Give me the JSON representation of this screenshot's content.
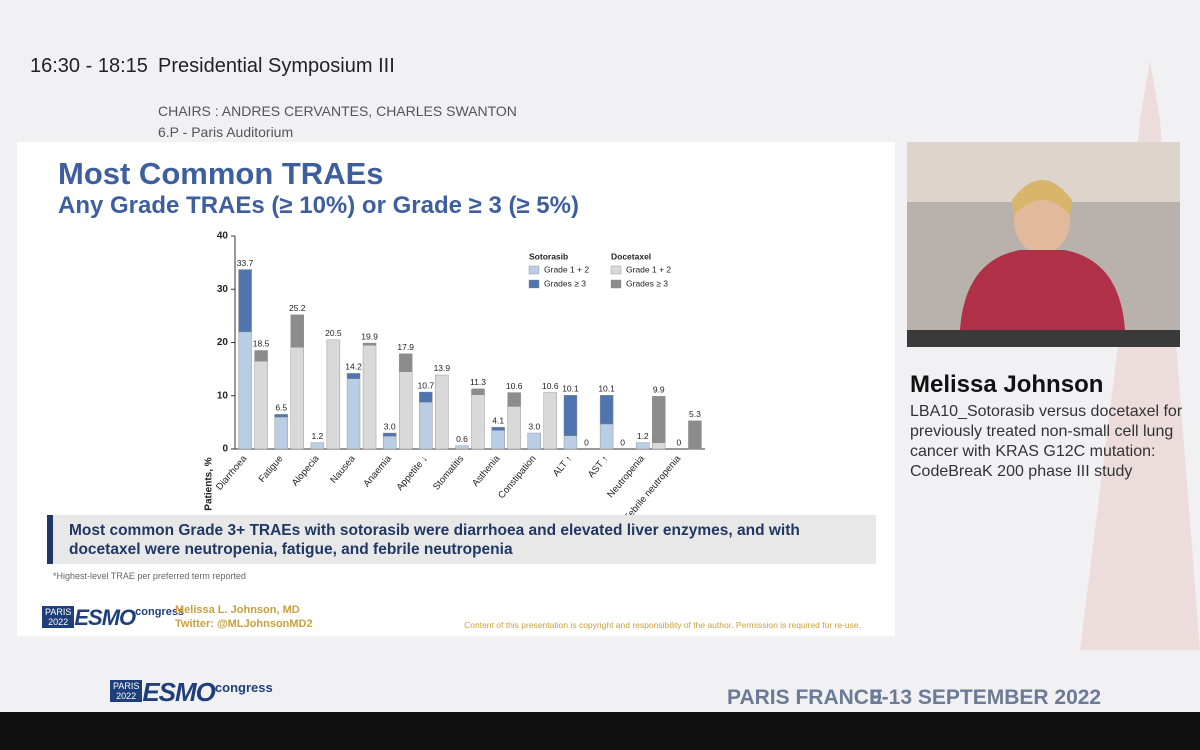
{
  "header": {
    "time": "16:30 - 18:15",
    "session": "Presidential Symposium III",
    "chairs": "CHAIRS : ANDRES CERVANTES, CHARLES SWANTON",
    "room": "6.P - Paris Auditorium"
  },
  "slide": {
    "title": "Most Common TRAEs",
    "subtitle": "Any Grade TRAEs (≥ 10%) or Grade ≥ 3 (≥ 5%)",
    "callout": "Most common Grade 3+ TRAEs with sotorasib were diarrhoea and elevated liver enzymes, and with docetaxel were neutropenia, fatigue, and febrile neutropenia",
    "footnote": "*Highest-level TRAE per preferred term reported",
    "presenter": "Melissa L. Johnson, MD",
    "twitter": "Twitter: @MLJohnsonMD2",
    "copyright": "Content of this presentation is copyright and responsibility of the author. Permission is required for re-use.",
    "logo": {
      "city": "PARIS",
      "year": "2022",
      "brand": "ESMO",
      "event": "congress"
    }
  },
  "chart_data": {
    "type": "stacked-grouped-bar",
    "y_label": "Patients, %",
    "categories": [
      "Diarrhoea",
      "Fatigue",
      "Alopecia",
      "Nausea",
      "Anaemia",
      "Appetite ↓",
      "Stomatitis",
      "Asthenia",
      "Constipation",
      "ALT ↑",
      "AST ↑",
      "Neutropenia",
      "Febrile neutropenia"
    ],
    "groups": [
      {
        "name": "Sotorasib",
        "total_labels": [
          "33.7",
          "6.5",
          "1.2",
          "14.2",
          "3.0",
          "10.7",
          "0.6",
          "4.1",
          "3.0",
          "10.1",
          "10.1",
          "1.2",
          "0"
        ]
      },
      {
        "name": "Docetaxel",
        "total_labels": [
          "18.5",
          "25.2",
          "20.5",
          "19.9",
          "17.9",
          "13.9",
          "11.3",
          "10.6",
          "10.6",
          "0",
          "0",
          "9.9",
          "5.3"
        ]
      }
    ],
    "series": [
      {
        "name": "Grade 1 + 2",
        "group": "Sotorasib",
        "color": "#b9cde5",
        "values": [
          22.0,
          6.0,
          1.2,
          13.2,
          2.4,
          8.8,
          0.6,
          3.5,
          3.0,
          2.5,
          4.7,
          1.2,
          0
        ]
      },
      {
        "name": "Grades ≥ 3",
        "group": "Sotorasib",
        "color": "#4f74b0",
        "values": [
          11.7,
          0.5,
          0,
          1.0,
          0.6,
          1.9,
          0,
          0.6,
          0,
          7.6,
          5.4,
          0,
          0
        ]
      },
      {
        "name": "Grade 1 + 2",
        "group": "Docetaxel",
        "color": "#d9d9d9",
        "values": [
          16.5,
          19.1,
          20.5,
          19.5,
          14.5,
          13.9,
          10.2,
          8.0,
          10.6,
          0,
          0,
          1.2,
          0
        ]
      },
      {
        "name": "Grades ≥ 3",
        "group": "Docetaxel",
        "color": "#8c8c8c",
        "values": [
          2.0,
          6.1,
          0,
          0.4,
          3.4,
          0,
          1.1,
          2.6,
          0,
          0,
          0,
          8.7,
          5.3
        ]
      }
    ],
    "ylim": [
      0,
      40
    ],
    "yticks": [
      0,
      10,
      20,
      30,
      40
    ]
  },
  "speaker": {
    "name": "Melissa Johnson",
    "talk": "LBA10_Sotorasib versus docetaxel for previously treated non-small cell lung cancer with KRAS G12C mutation: CodeBreaK 200 phase III study"
  },
  "footer": {
    "location": "PARIS FRANCE",
    "dates": "9-13 SEPTEMBER 2022",
    "logo": {
      "city": "PARIS",
      "year": "2022",
      "brand": "ESMO",
      "event": "congress"
    }
  }
}
